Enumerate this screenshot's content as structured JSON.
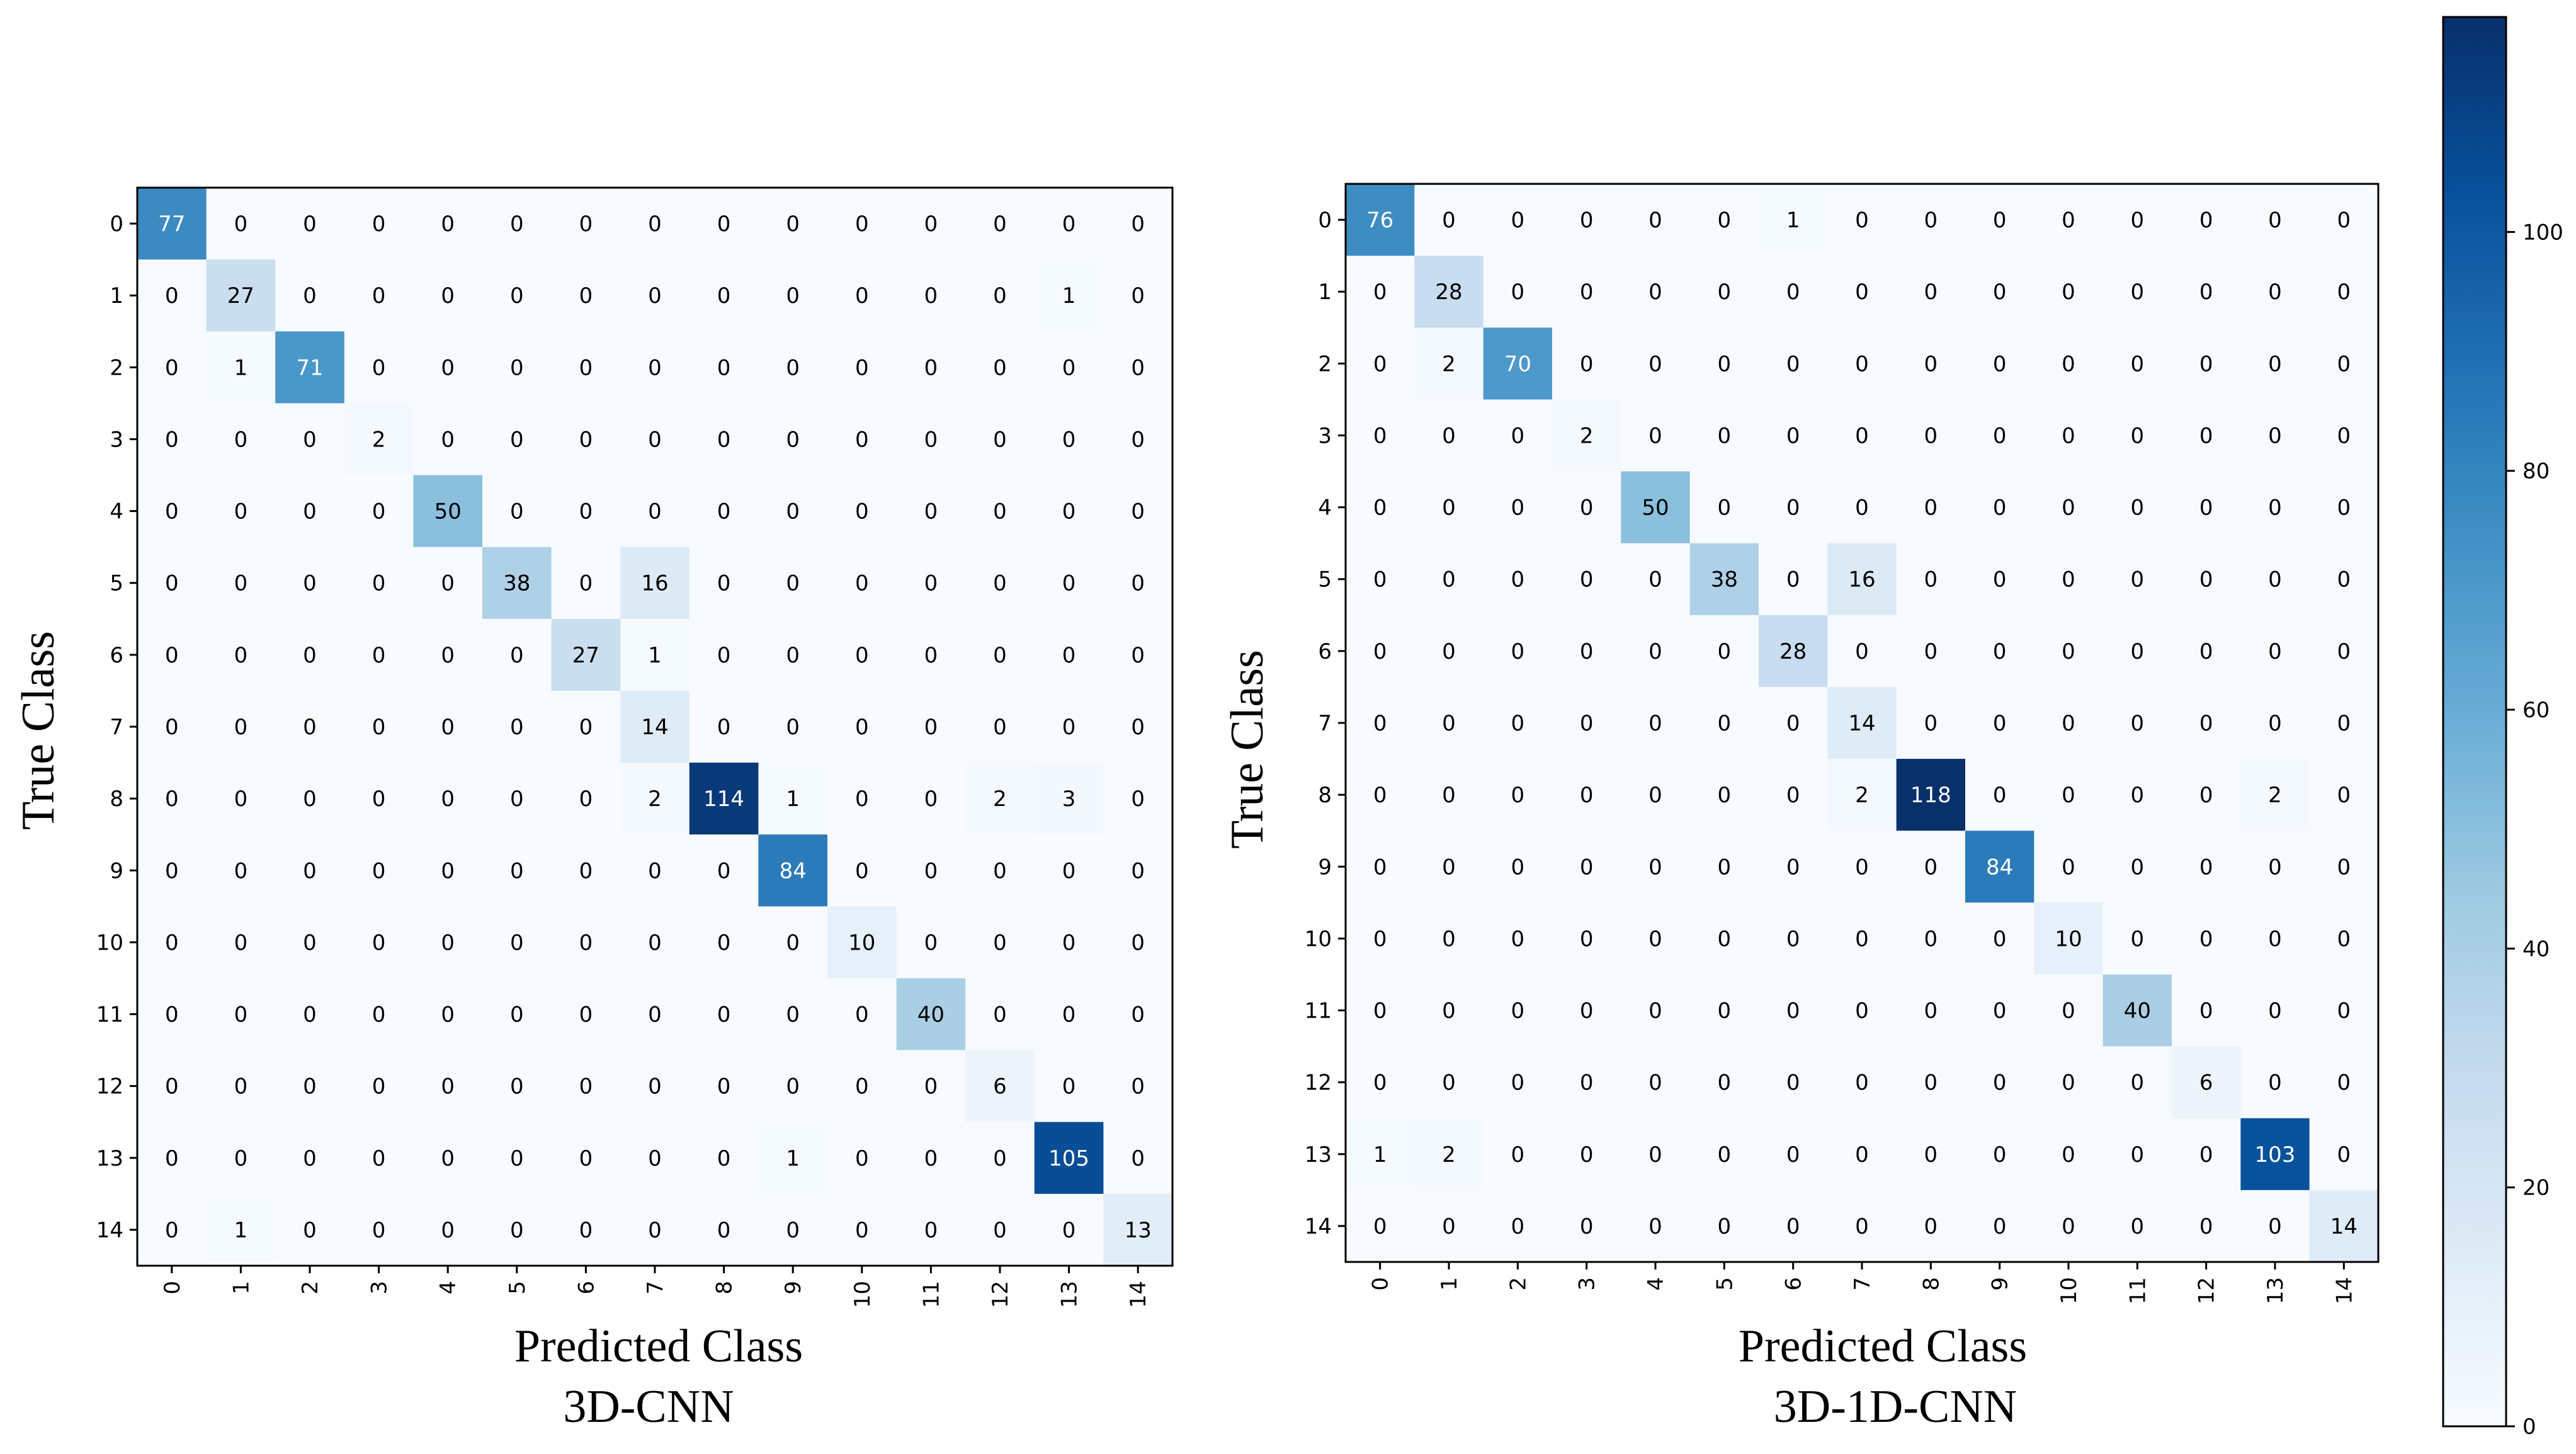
{
  "chart_data": [
    {
      "type": "heatmap",
      "title": "3D-CNN",
      "xlabel": "Predicted Class",
      "ylabel": "True Class",
      "x_categories": [
        "0",
        "1",
        "2",
        "3",
        "4",
        "5",
        "6",
        "7",
        "8",
        "9",
        "10",
        "11",
        "12",
        "13",
        "14"
      ],
      "y_categories": [
        "0",
        "1",
        "2",
        "3",
        "4",
        "5",
        "6",
        "7",
        "8",
        "9",
        "10",
        "11",
        "12",
        "13",
        "14"
      ],
      "matrix": [
        [
          77,
          0,
          0,
          0,
          0,
          0,
          0,
          0,
          0,
          0,
          0,
          0,
          0,
          0,
          0
        ],
        [
          0,
          27,
          0,
          0,
          0,
          0,
          0,
          0,
          0,
          0,
          0,
          0,
          0,
          1,
          0
        ],
        [
          0,
          1,
          71,
          0,
          0,
          0,
          0,
          0,
          0,
          0,
          0,
          0,
          0,
          0,
          0
        ],
        [
          0,
          0,
          0,
          2,
          0,
          0,
          0,
          0,
          0,
          0,
          0,
          0,
          0,
          0,
          0
        ],
        [
          0,
          0,
          0,
          0,
          50,
          0,
          0,
          0,
          0,
          0,
          0,
          0,
          0,
          0,
          0
        ],
        [
          0,
          0,
          0,
          0,
          0,
          38,
          0,
          16,
          0,
          0,
          0,
          0,
          0,
          0,
          0
        ],
        [
          0,
          0,
          0,
          0,
          0,
          0,
          27,
          1,
          0,
          0,
          0,
          0,
          0,
          0,
          0
        ],
        [
          0,
          0,
          0,
          0,
          0,
          0,
          0,
          14,
          0,
          0,
          0,
          0,
          0,
          0,
          0
        ],
        [
          0,
          0,
          0,
          0,
          0,
          0,
          0,
          2,
          114,
          1,
          0,
          0,
          2,
          3,
          0
        ],
        [
          0,
          0,
          0,
          0,
          0,
          0,
          0,
          0,
          0,
          84,
          0,
          0,
          0,
          0,
          0
        ],
        [
          0,
          0,
          0,
          0,
          0,
          0,
          0,
          0,
          0,
          0,
          10,
          0,
          0,
          0,
          0
        ],
        [
          0,
          0,
          0,
          0,
          0,
          0,
          0,
          0,
          0,
          0,
          0,
          40,
          0,
          0,
          0
        ],
        [
          0,
          0,
          0,
          0,
          0,
          0,
          0,
          0,
          0,
          0,
          0,
          0,
          6,
          0,
          0
        ],
        [
          0,
          0,
          0,
          0,
          0,
          0,
          0,
          0,
          0,
          1,
          0,
          0,
          0,
          105,
          0
        ],
        [
          0,
          1,
          0,
          0,
          0,
          0,
          0,
          0,
          0,
          0,
          0,
          0,
          0,
          0,
          13
        ]
      ]
    },
    {
      "type": "heatmap",
      "title": "3D-1D-CNN",
      "xlabel": "Predicted Class",
      "ylabel": "True Class",
      "x_categories": [
        "0",
        "1",
        "2",
        "3",
        "4",
        "5",
        "6",
        "7",
        "8",
        "9",
        "10",
        "11",
        "12",
        "13",
        "14"
      ],
      "y_categories": [
        "0",
        "1",
        "2",
        "3",
        "4",
        "5",
        "6",
        "7",
        "8",
        "9",
        "10",
        "11",
        "12",
        "13",
        "14"
      ],
      "matrix": [
        [
          76,
          0,
          0,
          0,
          0,
          0,
          1,
          0,
          0,
          0,
          0,
          0,
          0,
          0,
          0
        ],
        [
          0,
          28,
          0,
          0,
          0,
          0,
          0,
          0,
          0,
          0,
          0,
          0,
          0,
          0,
          0
        ],
        [
          0,
          2,
          70,
          0,
          0,
          0,
          0,
          0,
          0,
          0,
          0,
          0,
          0,
          0,
          0
        ],
        [
          0,
          0,
          0,
          2,
          0,
          0,
          0,
          0,
          0,
          0,
          0,
          0,
          0,
          0,
          0
        ],
        [
          0,
          0,
          0,
          0,
          50,
          0,
          0,
          0,
          0,
          0,
          0,
          0,
          0,
          0,
          0
        ],
        [
          0,
          0,
          0,
          0,
          0,
          38,
          0,
          16,
          0,
          0,
          0,
          0,
          0,
          0,
          0
        ],
        [
          0,
          0,
          0,
          0,
          0,
          0,
          28,
          0,
          0,
          0,
          0,
          0,
          0,
          0,
          0
        ],
        [
          0,
          0,
          0,
          0,
          0,
          0,
          0,
          14,
          0,
          0,
          0,
          0,
          0,
          0,
          0
        ],
        [
          0,
          0,
          0,
          0,
          0,
          0,
          0,
          2,
          118,
          0,
          0,
          0,
          0,
          2,
          0
        ],
        [
          0,
          0,
          0,
          0,
          0,
          0,
          0,
          0,
          0,
          84,
          0,
          0,
          0,
          0,
          0
        ],
        [
          0,
          0,
          0,
          0,
          0,
          0,
          0,
          0,
          0,
          0,
          10,
          0,
          0,
          0,
          0
        ],
        [
          0,
          0,
          0,
          0,
          0,
          0,
          0,
          0,
          0,
          0,
          0,
          40,
          0,
          0,
          0
        ],
        [
          0,
          0,
          0,
          0,
          0,
          0,
          0,
          0,
          0,
          0,
          0,
          0,
          6,
          0,
          0
        ],
        [
          1,
          2,
          0,
          0,
          0,
          0,
          0,
          0,
          0,
          0,
          0,
          0,
          0,
          103,
          0
        ],
        [
          0,
          0,
          0,
          0,
          0,
          0,
          0,
          0,
          0,
          0,
          0,
          0,
          0,
          0,
          14
        ]
      ]
    }
  ],
  "colorbar": {
    "min": 0,
    "max": 118,
    "ticks": [
      0,
      20,
      40,
      60,
      80,
      100
    ],
    "colormap": "Blues",
    "colors": [
      "#f7fbff",
      "#deebf7",
      "#c6dbef",
      "#9ecae1",
      "#6baed6",
      "#4292c6",
      "#2171b5",
      "#08519c",
      "#08306b"
    ]
  }
}
